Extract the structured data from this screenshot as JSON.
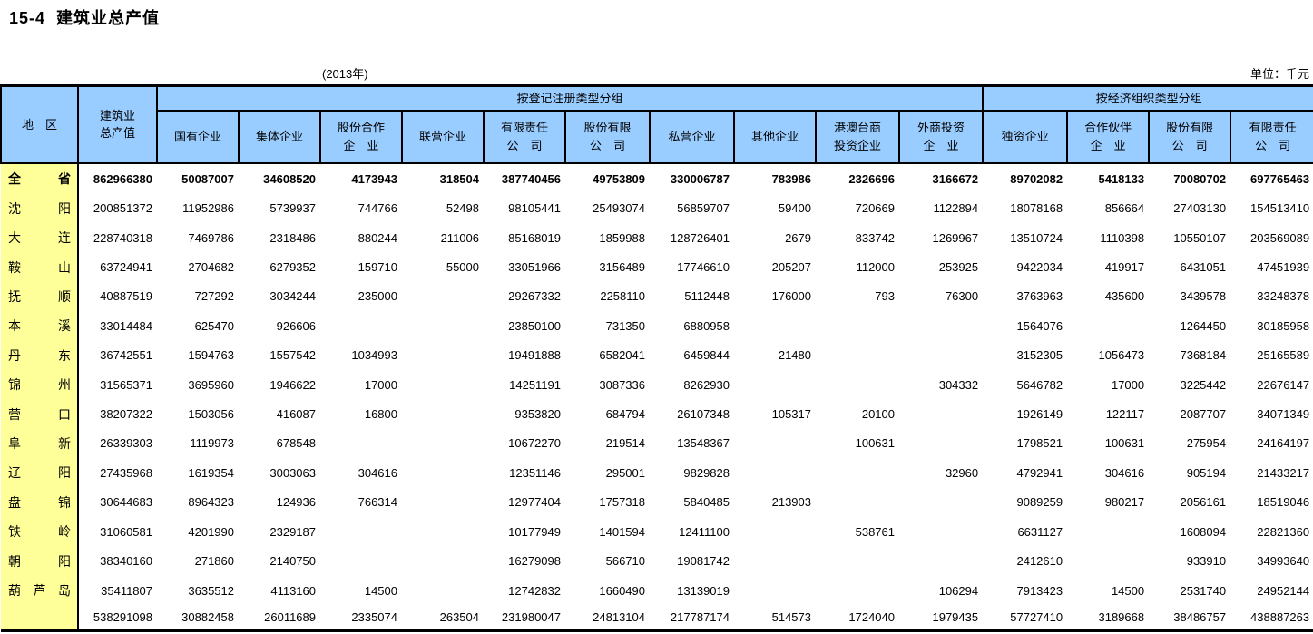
{
  "page": {
    "title": "15-4  建筑业总产值",
    "year_note": "(2013年)",
    "unit_note": "单位：千元"
  },
  "table": {
    "corner_header": "地　区",
    "total_header": "建筑业\n总产值",
    "groups": [
      {
        "label": "按登记注册类型分组"
      },
      {
        "label": "按经济组织类型分组"
      }
    ],
    "columns": [
      "国有企业",
      "集体企业",
      "股份合作\n企　业",
      "联营企业",
      "有限责任\n公　司",
      "股份有限\n公　司",
      "私营企业",
      "其他企业",
      "港澳台商\n投资企业",
      "外商投资\n企　业",
      "独资企业",
      "合作伙伴\n企　业",
      "股份有限\n公　司",
      "有限责任\n公　司"
    ],
    "colors": {
      "header_bg": "#99CCFF",
      "region_bg": "#FFFF99"
    },
    "rows": [
      {
        "region": "全省",
        "bold": true,
        "values": [
          "862966380",
          "50087007",
          "34608520",
          "4173943",
          "318504",
          "387740456",
          "49753809",
          "330006787",
          "783986",
          "2326696",
          "3166672",
          "89702082",
          "5418133",
          "70080702",
          "697765463"
        ]
      },
      {
        "region": "沈阳",
        "bold": false,
        "values": [
          "200851372",
          "11952986",
          "5739937",
          "744766",
          "52498",
          "98105441",
          "25493074",
          "56859707",
          "59400",
          "720669",
          "1122894",
          "18078168",
          "856664",
          "27403130",
          "154513410"
        ]
      },
      {
        "region": "大连",
        "bold": false,
        "values": [
          "228740318",
          "7469786",
          "2318486",
          "880244",
          "211006",
          "85168019",
          "1859988",
          "128726401",
          "2679",
          "833742",
          "1269967",
          "13510724",
          "1110398",
          "10550107",
          "203569089"
        ]
      },
      {
        "region": "鞍山",
        "bold": false,
        "values": [
          "63724941",
          "2704682",
          "6279352",
          "159710",
          "55000",
          "33051966",
          "3156489",
          "17746610",
          "205207",
          "112000",
          "253925",
          "9422034",
          "419917",
          "6431051",
          "47451939"
        ]
      },
      {
        "region": "抚顺",
        "bold": false,
        "values": [
          "40887519",
          "727292",
          "3034244",
          "235000",
          "",
          "29267332",
          "2258110",
          "5112448",
          "176000",
          "793",
          "76300",
          "3763963",
          "435600",
          "3439578",
          "33248378"
        ]
      },
      {
        "region": "本溪",
        "bold": false,
        "values": [
          "33014484",
          "625470",
          "926606",
          "",
          "",
          "23850100",
          "731350",
          "6880958",
          "",
          "",
          "",
          "1564076",
          "",
          "1264450",
          "30185958"
        ]
      },
      {
        "region": "丹东",
        "bold": false,
        "values": [
          "36742551",
          "1594763",
          "1557542",
          "1034993",
          "",
          "19491888",
          "6582041",
          "6459844",
          "21480",
          "",
          "",
          "3152305",
          "1056473",
          "7368184",
          "25165589"
        ]
      },
      {
        "region": "锦州",
        "bold": false,
        "values": [
          "31565371",
          "3695960",
          "1946622",
          "17000",
          "",
          "14251191",
          "3087336",
          "8262930",
          "",
          "",
          "304332",
          "5646782",
          "17000",
          "3225442",
          "22676147"
        ]
      },
      {
        "region": "营口",
        "bold": false,
        "values": [
          "38207322",
          "1503056",
          "416087",
          "16800",
          "",
          "9353820",
          "684794",
          "26107348",
          "105317",
          "20100",
          "",
          "1926149",
          "122117",
          "2087707",
          "34071349"
        ]
      },
      {
        "region": "阜新",
        "bold": false,
        "values": [
          "26339303",
          "1119973",
          "678548",
          "",
          "",
          "10672270",
          "219514",
          "13548367",
          "",
          "100631",
          "",
          "1798521",
          "100631",
          "275954",
          "24164197"
        ]
      },
      {
        "region": "辽阳",
        "bold": false,
        "values": [
          "27435968",
          "1619354",
          "3003063",
          "304616",
          "",
          "12351146",
          "295001",
          "9829828",
          "",
          "",
          "32960",
          "4792941",
          "304616",
          "905194",
          "21433217"
        ]
      },
      {
        "region": "盘锦",
        "bold": false,
        "values": [
          "30644683",
          "8964323",
          "124936",
          "766314",
          "",
          "12977404",
          "1757318",
          "5840485",
          "213903",
          "",
          "",
          "9089259",
          "980217",
          "2056161",
          "18519046"
        ]
      },
      {
        "region": "铁岭",
        "bold": false,
        "values": [
          "31060581",
          "4201990",
          "2329187",
          "",
          "",
          "10177949",
          "1401594",
          "12411100",
          "",
          "538761",
          "",
          "6631127",
          "",
          "1608094",
          "22821360"
        ]
      },
      {
        "region": "朝阳",
        "bold": false,
        "values": [
          "38340160",
          "271860",
          "2140750",
          "",
          "",
          "16279098",
          "566710",
          "19081742",
          "",
          "",
          "",
          "2412610",
          "",
          "933910",
          "34993640"
        ]
      },
      {
        "region": "葫芦岛",
        "bold": false,
        "values": [
          "35411807",
          "3635512",
          "4113160",
          "14500",
          "",
          "12742832",
          "1660490",
          "13139019",
          "",
          "",
          "106294",
          "7913423",
          "14500",
          "2531740",
          "24952144"
        ]
      },
      {
        "region": "",
        "bold": false,
        "values": [
          "538291098",
          "30882458",
          "26011689",
          "2335074",
          "263504",
          "231980047",
          "24813104",
          "217787174",
          "514573",
          "1724040",
          "1979435",
          "57727410",
          "3189668",
          "38486757",
          "438887263"
        ]
      }
    ]
  }
}
